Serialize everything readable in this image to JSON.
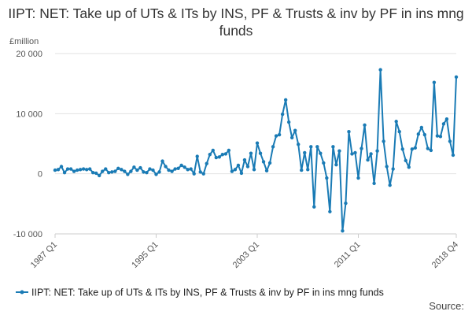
{
  "chart_data": {
    "type": "line",
    "title": "IIPT: NET: Take up of UTs & ITs by INS, PF & Trusts & inv by PF in ins mng funds",
    "ylabel": "£million",
    "xlabel": "",
    "ylim": [
      -10000,
      20000
    ],
    "yticks": [
      20000,
      10000,
      0,
      -10000
    ],
    "ytick_labels": [
      "20 000",
      "10 000",
      "0",
      "-10 000"
    ],
    "xticks": [
      {
        "label": "1987 Q1",
        "index": 0
      },
      {
        "label": "1995 Q1",
        "index": 32
      },
      {
        "label": "2003 Q1",
        "index": 64
      },
      {
        "label": "2011 Q1",
        "index": 96
      },
      {
        "label": "2018 Q4",
        "index": 127
      }
    ],
    "grid": true,
    "legend_position": "bottom",
    "series": [
      {
        "name": "IIPT: NET: Take up of UTs & ITs by INS, PF & Trusts & inv by PF in ins mng funds",
        "color": "#1a7bb5",
        "values": [
          600,
          700,
          1200,
          200,
          800,
          800,
          400,
          600,
          700,
          800,
          700,
          800,
          200,
          100,
          -300,
          400,
          800,
          200,
          300,
          400,
          900,
          700,
          400,
          -100,
          400,
          1100,
          600,
          1000,
          300,
          200,
          800,
          600,
          -100,
          300,
          2100,
          1200,
          600,
          400,
          800,
          900,
          1400,
          1100,
          700,
          800,
          0,
          2900,
          300,
          0,
          1700,
          3200,
          3900,
          2700,
          2800,
          3200,
          3300,
          3900,
          400,
          700,
          1400,
          100,
          2300,
          1200,
          3400,
          700,
          5100,
          3400,
          2000,
          500,
          1800,
          4500,
          6300,
          6500,
          9900,
          12300,
          8600,
          6000,
          7200,
          4900,
          600,
          3500,
          700,
          4500,
          -5500,
          4500,
          3400,
          1800,
          -700,
          -6300,
          4500,
          1500,
          3800,
          -9500,
          -4900,
          7000,
          3300,
          3500,
          -700,
          4200,
          8100,
          2300,
          3300,
          -1600,
          3800,
          17300,
          5400,
          1200,
          -1900,
          800,
          8700,
          7000,
          4100,
          2200,
          1100,
          4100,
          4300,
          6600,
          7700,
          6500,
          4200,
          3900,
          15200,
          6300,
          6200,
          8300,
          9100,
          5400,
          3100,
          16100
        ]
      }
    ]
  },
  "source_label": "Source:"
}
